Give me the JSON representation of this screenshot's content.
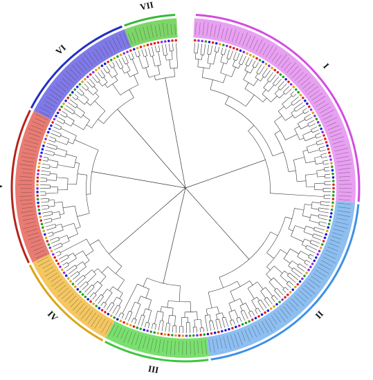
{
  "tree": {
    "groups": [
      {
        "id": "I",
        "label": "I",
        "start": 3,
        "end": 95,
        "color": "#d24be0",
        "band": "#e48ff0"
      },
      {
        "id": "II",
        "label": "II",
        "start": 95,
        "end": 172,
        "color": "#3b8fe6",
        "band": "#79b4ee"
      },
      {
        "id": "III",
        "label": "III",
        "start": 172,
        "end": 208,
        "color": "#3cc53c",
        "band": "#62db55"
      },
      {
        "id": "IV",
        "label": "IV",
        "start": 208,
        "end": 244,
        "color": "#d9a414",
        "band": "#f2bd45"
      },
      {
        "id": "V",
        "label": "V",
        "start": 244,
        "end": 297,
        "color": "#b5231c",
        "band": "#e4655a"
      },
      {
        "id": "VI",
        "label": "VI",
        "start": 297,
        "end": 339,
        "color": "#1f2fc4",
        "band": "#6a63e4"
      },
      {
        "id": "VII",
        "label": "VII",
        "start": 339,
        "end": 357,
        "color": "#36b836",
        "band": "#66cf4e"
      }
    ],
    "dot_colors": [
      "#1a1ae0",
      "#e02020",
      "#20a020",
      "#e0a020",
      "#8a2be2"
    ],
    "leaf_count": 260
  }
}
